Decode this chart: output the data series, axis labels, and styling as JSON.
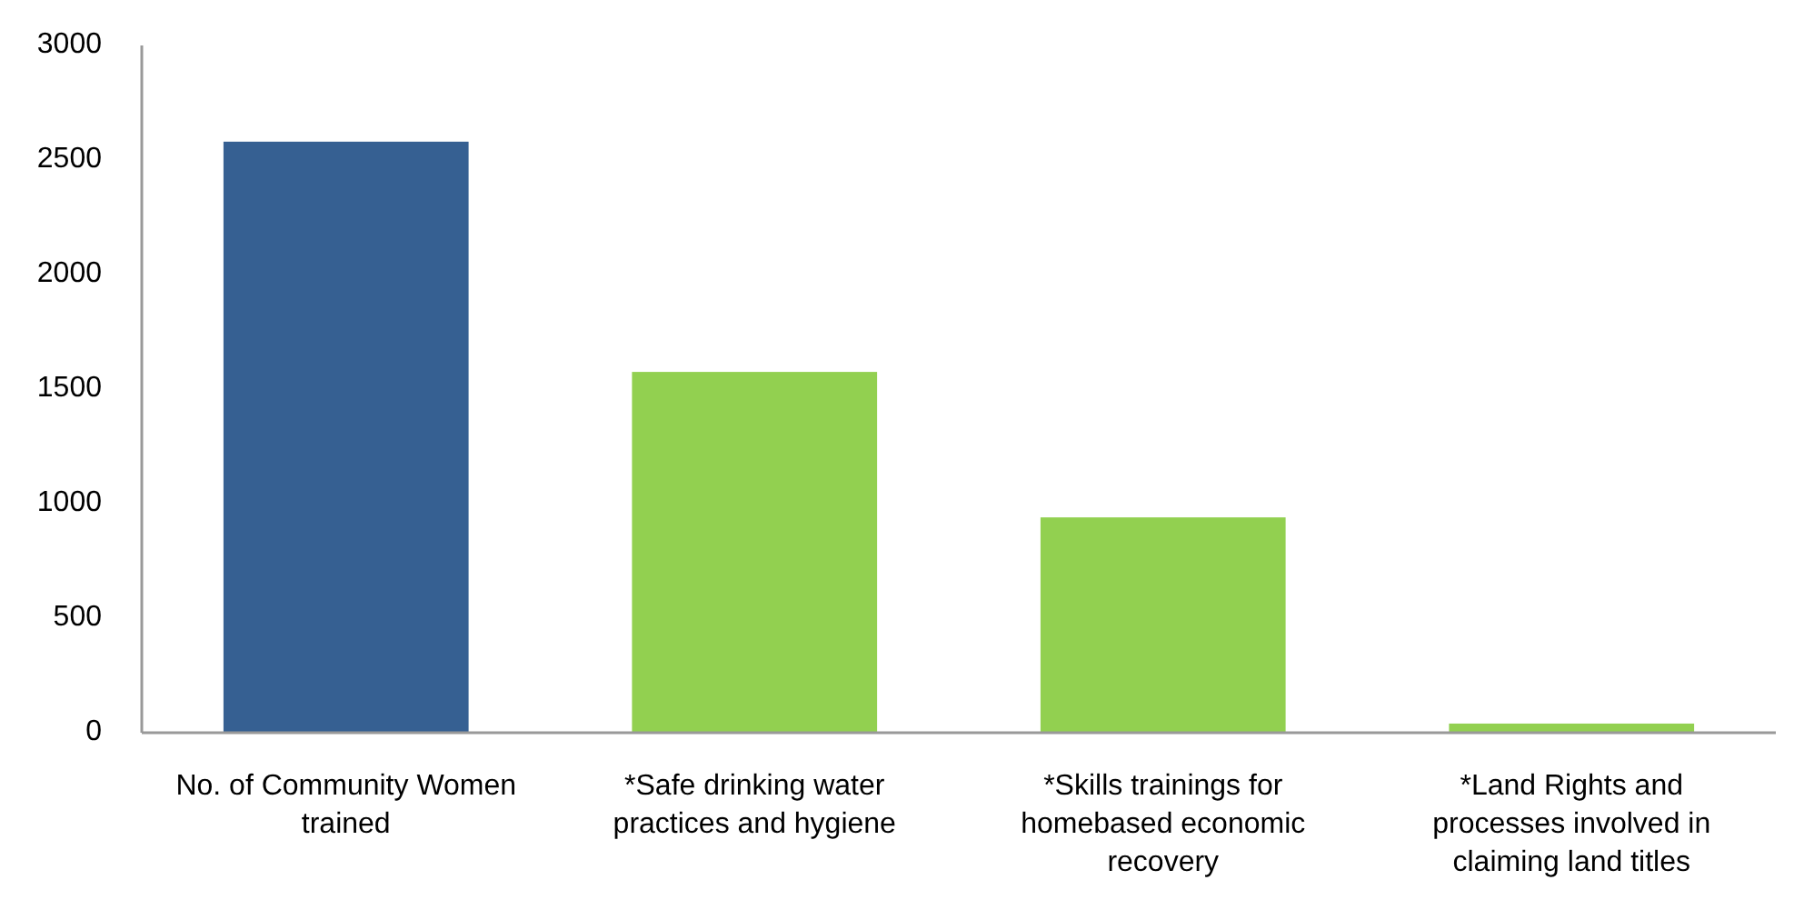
{
  "chart_data": {
    "type": "bar",
    "categories": [
      "No. of Community Women trained",
      "*Safe drinking water practices and hygiene",
      "*Skills trainings for homebased economic recovery",
      "*Land Rights and processes involved in claiming land titles"
    ],
    "values": [
      2580,
      1575,
      940,
      40
    ],
    "colors": [
      "#366092",
      "#92d050",
      "#92d050",
      "#92d050"
    ],
    "ylim": [
      0,
      3000
    ],
    "yticks": [
      0,
      500,
      1000,
      1500,
      2000,
      2500,
      3000
    ],
    "grid": false
  }
}
